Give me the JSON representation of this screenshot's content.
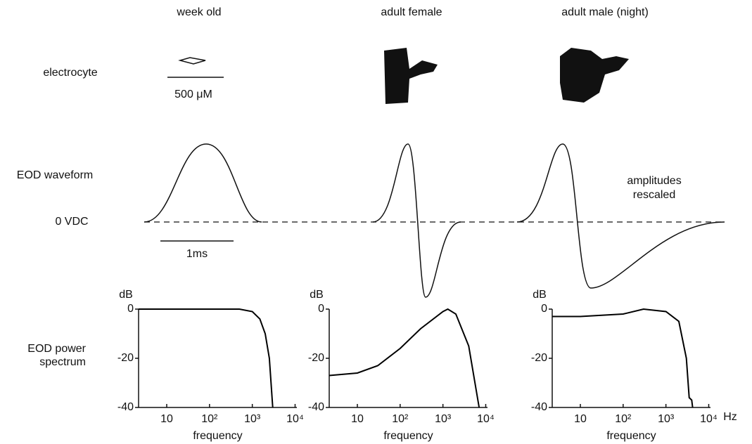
{
  "columns": [
    "week old",
    "adult female",
    "adult male (night)"
  ],
  "row_labels": {
    "electrocyte": "electrocyte",
    "waveform": "EOD waveform",
    "zero": "0 VDC",
    "spectrum": [
      "EOD power",
      "spectrum"
    ]
  },
  "scale_bars": {
    "length": "500 μM",
    "time": "1ms"
  },
  "annotation": [
    "amplitudes",
    "rescaled"
  ],
  "chart_data": [
    {
      "type": "line",
      "x_label": "frequency",
      "y_label": "dB",
      "log_x": true,
      "color": "#000000",
      "x": [
        2.2,
        10,
        100,
        500,
        1000,
        1500,
        2000,
        2500,
        3000
      ],
      "values": [
        0,
        0,
        0,
        0,
        -1,
        -4,
        -10,
        -20,
        -40
      ],
      "xlim": [
        2.2,
        11000
      ],
      "ylim": [
        -40,
        0
      ],
      "xticks": [
        10,
        {
          "value": 100,
          "label": "10²"
        },
        {
          "value": 1000,
          "label": "10³"
        },
        {
          "value": 10000,
          "label": "10⁴"
        }
      ],
      "yticks": [
        0,
        -20,
        -40
      ]
    },
    {
      "type": "line",
      "x_label": "frequency",
      "y_label": "dB",
      "log_x": true,
      "color": "#000000",
      "x": [
        2.2,
        10,
        30,
        100,
        300,
        1000,
        1300,
        2000,
        4000,
        7000
      ],
      "values": [
        -27,
        -26,
        -23,
        -16,
        -8,
        -1,
        0,
        -2,
        -15,
        -40
      ],
      "xlim": [
        2.2,
        11000
      ],
      "ylim": [
        -40,
        0
      ],
      "xticks": [
        10,
        {
          "value": 100,
          "label": "10²"
        },
        {
          "value": 1000,
          "label": "10³"
        },
        {
          "value": 10000,
          "label": "10⁴"
        }
      ],
      "yticks": [
        0,
        -20,
        -40
      ]
    },
    {
      "type": "line",
      "x_label": "frequency",
      "y_label": "dB",
      "x_unit": "Hz",
      "log_x": true,
      "color": "#000000",
      "x": [
        2.2,
        10,
        100,
        300,
        1000,
        2000,
        3000,
        3500,
        4000,
        4200
      ],
      "values": [
        -3,
        -3,
        -2,
        0,
        -1,
        -5,
        -20,
        -36,
        -37,
        -40
      ],
      "xlim": [
        2.2,
        11000
      ],
      "ylim": [
        -40,
        0
      ],
      "xticks": [
        10,
        {
          "value": 100,
          "label": "10²"
        },
        {
          "value": 1000,
          "label": "10³"
        },
        {
          "value": 10000,
          "label": "10⁴"
        }
      ],
      "yticks": [
        0,
        -20,
        -40
      ]
    }
  ]
}
